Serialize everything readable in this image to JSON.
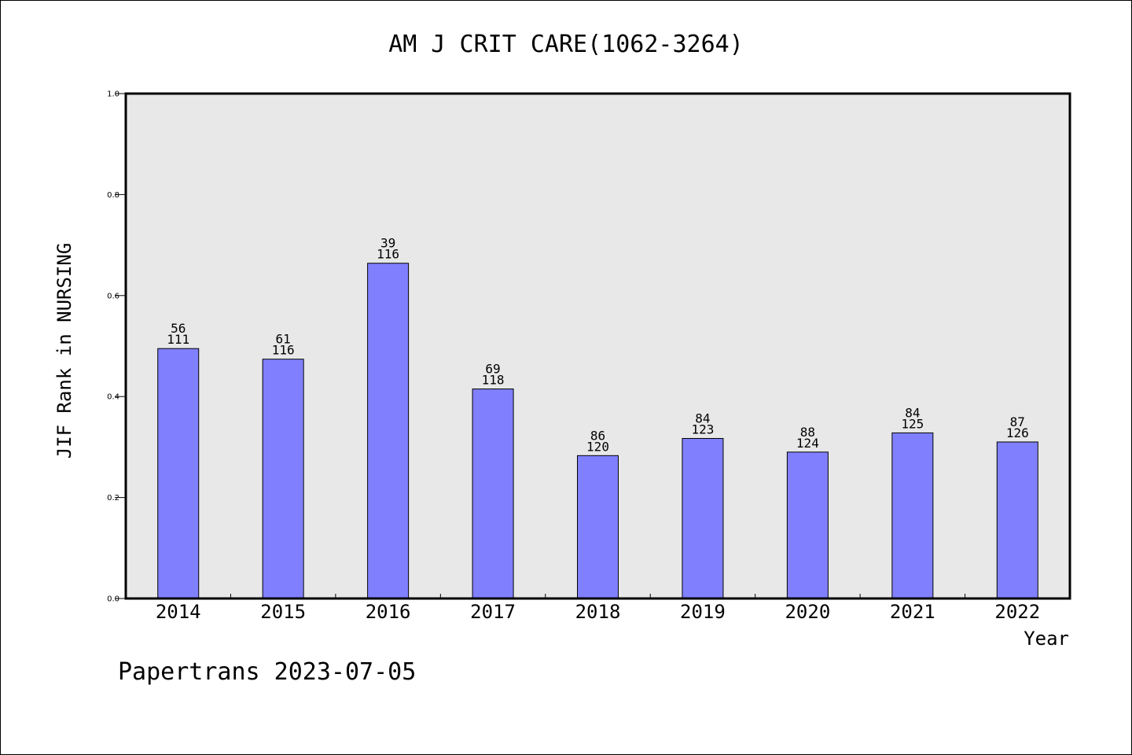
{
  "chart_data": {
    "type": "bar",
    "title": "AM J CRIT CARE(1062-3264)",
    "xlabel": "Year",
    "ylabel": "JIF Rank in NURSING",
    "ylim": [
      0,
      1.0
    ],
    "yticks": [
      "0.0",
      "0.2",
      "0.4",
      "0.6",
      "0.8",
      "1.0"
    ],
    "ytick_values": [
      0,
      0.2,
      0.4,
      0.6,
      0.8,
      1.0
    ],
    "categories": [
      "2014",
      "2015",
      "2016",
      "2017",
      "2018",
      "2019",
      "2020",
      "2021",
      "2022"
    ],
    "values": [
      0.495,
      0.474,
      0.664,
      0.415,
      0.283,
      0.317,
      0.29,
      0.328,
      0.31
    ],
    "rank": [
      "56",
      "61",
      "39",
      "69",
      "86",
      "84",
      "88",
      "84",
      "87"
    ],
    "total": [
      "111",
      "116",
      "116",
      "118",
      "120",
      "123",
      "124",
      "125",
      "126"
    ],
    "grid": false,
    "bar_color": "#8080ff",
    "plot_background": "#e8e8e8"
  },
  "footer": "Papertrans 2023-07-05"
}
